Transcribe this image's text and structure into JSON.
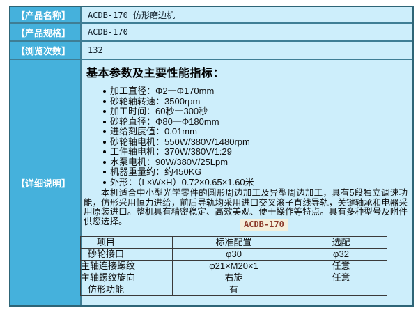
{
  "colors": {
    "header_cyan": "#45b1dc",
    "cell_lightblue": "#cdeefb",
    "outer_border": "#2e6577",
    "grid_line": "#3f7e95",
    "inner_table_border": "#3a3a3a",
    "badge_bg": "#f4efdb",
    "badge_text": "#8b3a2a"
  },
  "info": {
    "rows": [
      {
        "label": "【产品名称】",
        "value": "ACDB-170 仿形磨边机"
      },
      {
        "label": "【产品规格】",
        "value": "ACDB-170"
      },
      {
        "label": "【浏览次数】",
        "value": "132"
      }
    ],
    "detail_label": "【详细说明】"
  },
  "detail": {
    "heading": "基本参数及主要性能指标：",
    "bullets": [
      "加工直径：Φ2一Φ170mm",
      "砂轮轴转速：3500rpm",
      "加工时间：60秒一300秒",
      "砂轮直径：Φ80一Φ180mm",
      "进给刻度值：0.01mm",
      "砂轮轴电机：550W/380V/1480rpm",
      "工件轴电机：370W/380V/1:29",
      "水泵电机：90W/380V/25Lpm",
      "机器重量约：约450KG",
      "外形：（L×W×H）0.72×0.65×1.60米"
    ],
    "paragraph": "本机适合中小型光学零件的圆形周边加工及异型周边加工，具有5段独立调速功能，仿形采用恒力进给，前后导轨均采用进口交叉滚子直线导轨，关键轴承和电器采用原装进口。整机具有精密稳定、高效美观、便于操作等特点。具有多种型号及附件供您选择。",
    "badge": "ACDB-170",
    "spec_table": {
      "headers": [
        "项目",
        "标准配置",
        "选配"
      ],
      "rows": [
        [
          "砂轮接口",
          "φ30",
          "φ32"
        ],
        [
          "主轴连接螺纹",
          "φ21×M20×1",
          "任意"
        ],
        [
          "主轴螺纹旋向",
          "右旋",
          "任意"
        ],
        [
          "仿形功能",
          "有",
          ""
        ]
      ]
    }
  }
}
